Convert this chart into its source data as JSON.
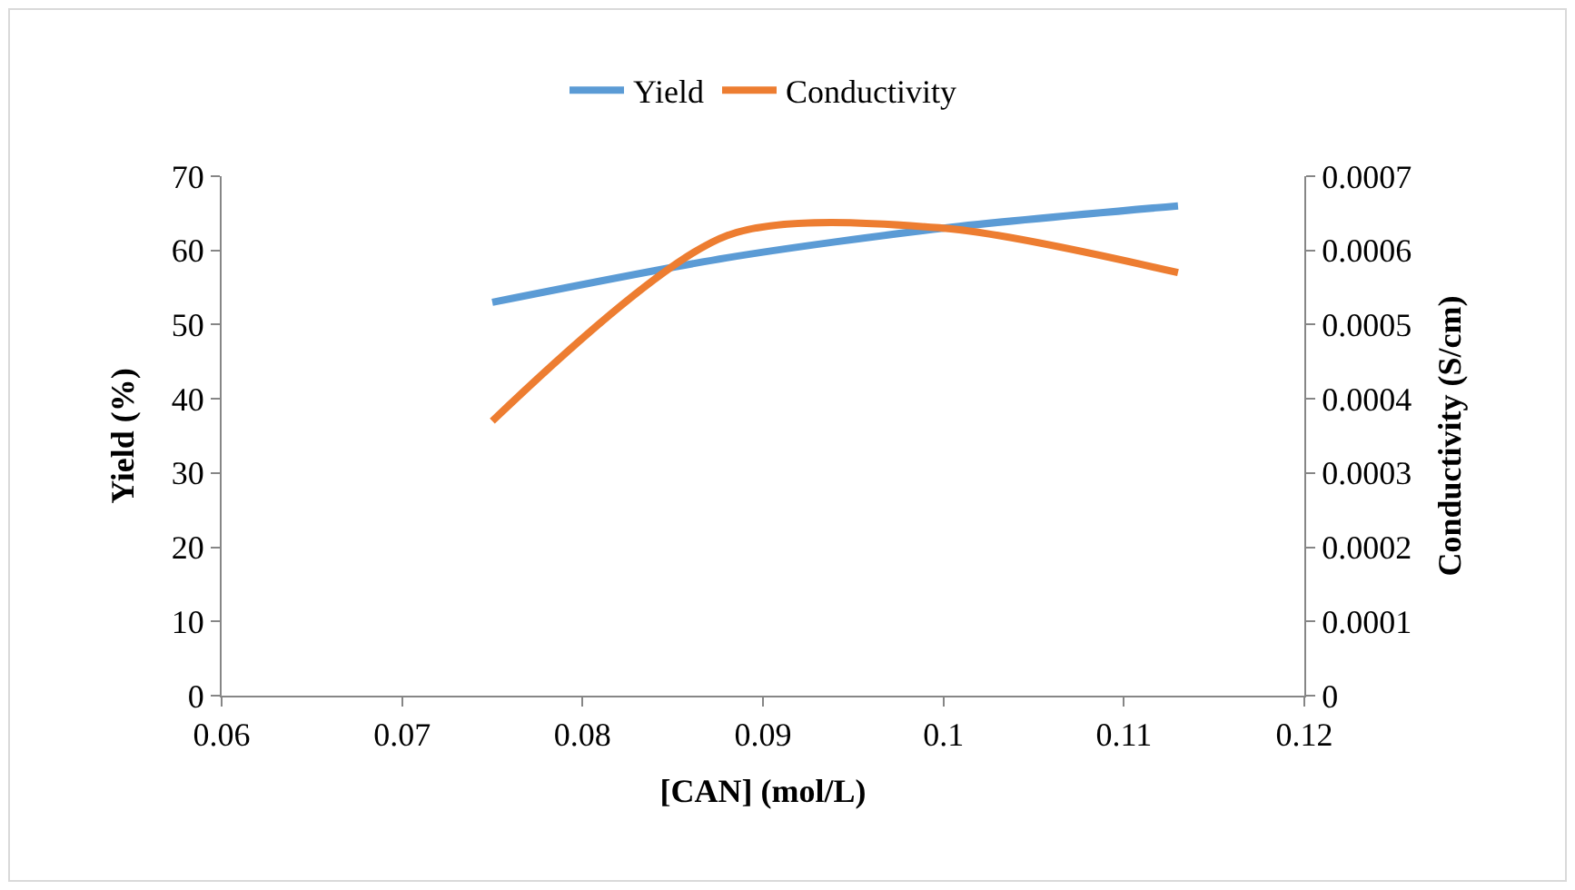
{
  "chart_data": {
    "type": "line",
    "xlabel": "[CAN] (mol/L)",
    "ylabel": "Yield (%)",
    "y2label": "Conductivity (S/cm)",
    "x": [
      0.075,
      0.088,
      0.1,
      0.113
    ],
    "series": [
      {
        "name": "Yield",
        "color": "#5b9bd5",
        "values": [
          53,
          59,
          63,
          66
        ]
      },
      {
        "name": "Conductivity",
        "color": "#ed7d31",
        "values": [
          0.00037,
          0.00062,
          0.00063,
          0.00057
        ],
        "axis": "y2"
      }
    ],
    "xlim": [
      0.06,
      0.12
    ],
    "xticks": [
      0.06,
      0.07,
      0.08,
      0.09,
      0.1,
      0.11,
      0.12
    ],
    "ylim": [
      0,
      70
    ],
    "yticks": [
      0,
      10,
      20,
      30,
      40,
      50,
      60,
      70
    ],
    "y2lim": [
      0,
      0.0007
    ],
    "y2ticks": [
      0,
      0.0001,
      0.0002,
      0.0003,
      0.0004,
      0.0005,
      0.0006,
      0.0007
    ],
    "grid": false,
    "legend": "top",
    "marker": "none",
    "line_style": "solid"
  }
}
